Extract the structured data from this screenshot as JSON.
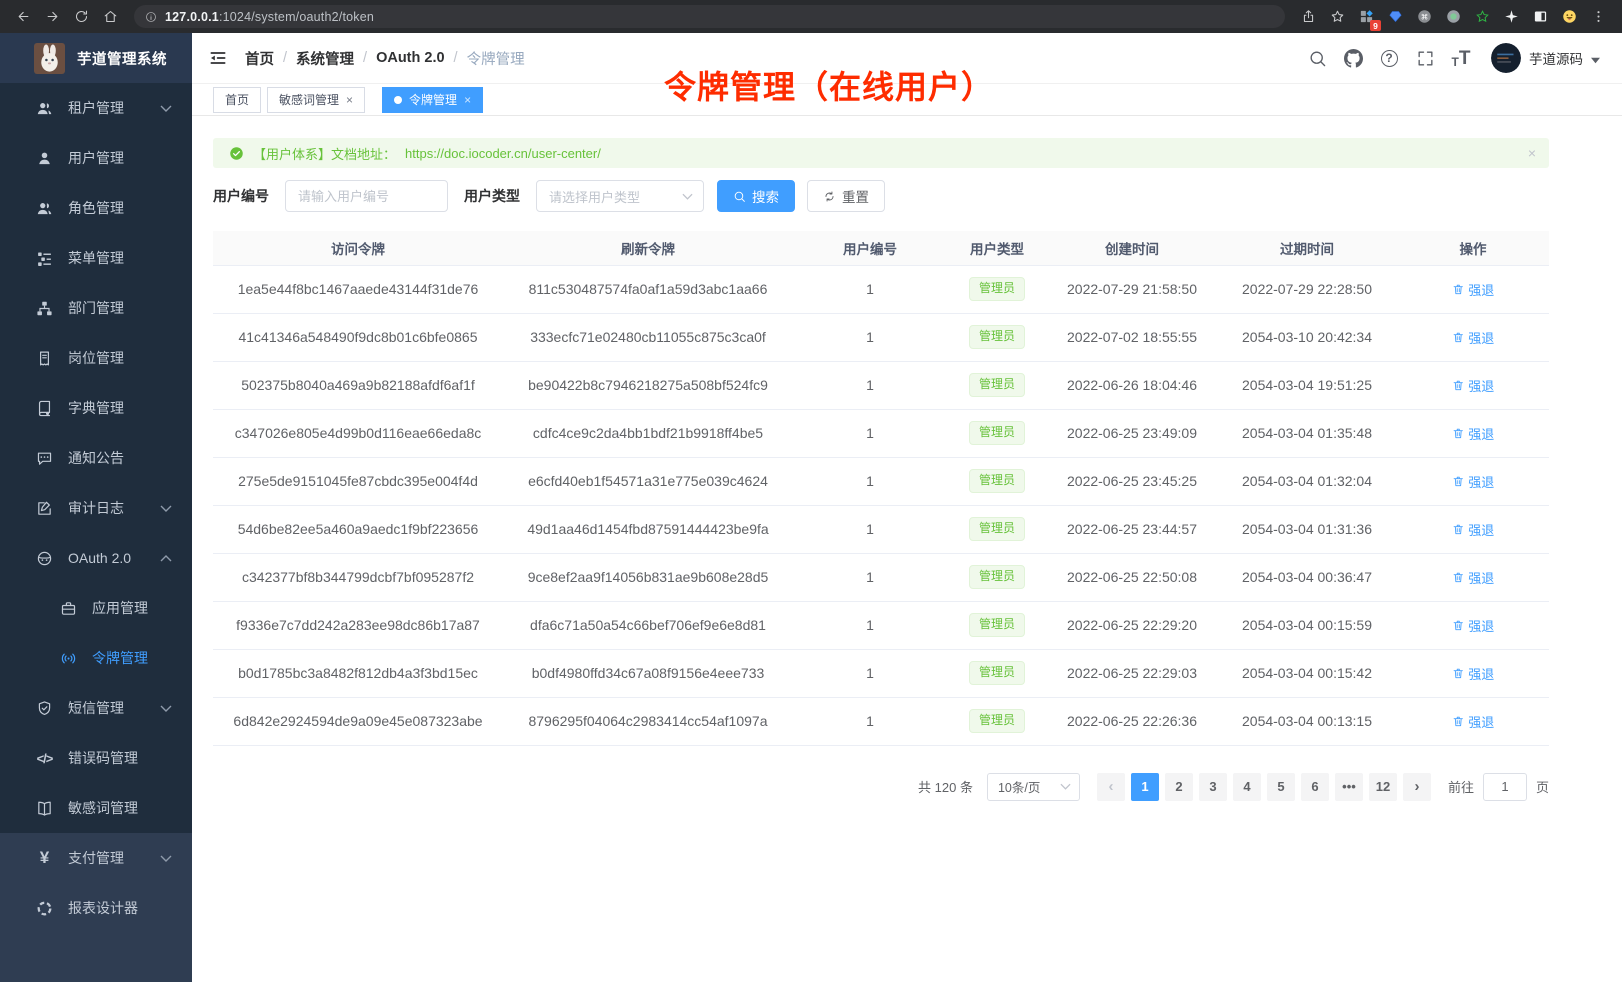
{
  "browser": {
    "nav_icons": [
      "back-icon",
      "forward-icon",
      "reload-icon",
      "home-icon"
    ],
    "url_icon": "info-icon",
    "url_host": "127.0.0.1",
    "url_rest": ":1024/system/oauth2/token",
    "right_icons": [
      "share-icon",
      "bookmark-star-icon",
      "extensions-grid-icon",
      "gem-extension-icon",
      "command-extension-icon",
      "record-extension-icon",
      "green-star-extension-icon",
      "white-star-extension-icon",
      "side-panel-icon",
      "emoji-profile-icon",
      "kebab-menu-icon"
    ],
    "extension_badge": "9"
  },
  "sidebar": {
    "logo_title": "芋道管理系统",
    "menu": [
      {
        "id": "tenant",
        "icon": "users-icon",
        "label": "租户管理",
        "chevron": "down"
      },
      {
        "id": "user",
        "icon": "user-icon",
        "label": "用户管理"
      },
      {
        "id": "role",
        "icon": "role-users-icon",
        "label": "角色管理"
      },
      {
        "id": "menu",
        "icon": "menu-tree-icon",
        "label": "菜单管理"
      },
      {
        "id": "dept",
        "icon": "org-tree-icon",
        "label": "部门管理"
      },
      {
        "id": "post",
        "icon": "badge-icon",
        "label": "岗位管理"
      },
      {
        "id": "dict",
        "icon": "dictionary-icon",
        "label": "字典管理"
      },
      {
        "id": "notice",
        "icon": "announcement-icon",
        "label": "通知公告"
      },
      {
        "id": "audit",
        "icon": "audit-log-icon",
        "label": "审计日志",
        "chevron": "down"
      },
      {
        "id": "oauth2",
        "icon": "oauth-mask-icon",
        "label": "OAuth 2.0",
        "chevron": "up"
      },
      {
        "id": "oauth2-app",
        "icon": "briefcase-icon",
        "label": "应用管理",
        "sub": true
      },
      {
        "id": "oauth2-token",
        "icon": "broadcast-icon",
        "label": "令牌管理",
        "sub": true,
        "active": true
      },
      {
        "id": "sms",
        "icon": "shield-check-icon",
        "label": "短信管理",
        "chevron": "down"
      },
      {
        "id": "errcode",
        "icon": "code-icon",
        "label": "错误码管理"
      },
      {
        "id": "sensitive",
        "icon": "open-book-icon",
        "label": "敏感词管理"
      },
      {
        "id": "pay",
        "icon": "yen-icon",
        "label": "支付管理",
        "chevron": "down",
        "section2": true
      },
      {
        "id": "report",
        "icon": "pie-circle-icon",
        "label": "报表设计器",
        "section2": true
      }
    ]
  },
  "navbar": {
    "breadcrumb": [
      "首页",
      "系统管理",
      "OAuth 2.0",
      "令牌管理"
    ],
    "separator": "/",
    "right_icons": [
      "search-icon",
      "github-icon",
      "help-icon",
      "fullscreen-icon",
      "font-size-icon"
    ],
    "username": "芋道源码"
  },
  "tabs": [
    {
      "label": "首页",
      "closable": false,
      "active": false
    },
    {
      "label": "敏感词管理",
      "closable": true,
      "active": false
    },
    {
      "label": "令牌管理",
      "closable": true,
      "active": true
    }
  ],
  "annotation": "令牌管理（在线用户）",
  "alert": {
    "prefix": "【用户体系】文档地址：",
    "link": "https://doc.iocoder.cn/user-center/"
  },
  "filters": {
    "user_id_label": "用户编号",
    "user_id_placeholder": "请输入用户编号",
    "user_type_label": "用户类型",
    "user_type_placeholder": "请选择用户类型",
    "search_button": "搜索",
    "reset_button": "重置"
  },
  "table": {
    "columns": [
      "访问令牌",
      "刷新令牌",
      "用户编号",
      "用户类型",
      "创建时间",
      "过期时间",
      "操作"
    ],
    "action_label": "强退",
    "rows": [
      {
        "access": "1ea5e44f8bc1467aaede43144f31de76",
        "refresh": "811c530487574fa0af1a59d3abc1aa66",
        "user_id": "1",
        "user_type": "管理员",
        "created": "2022-07-29 21:58:50",
        "expires": "2022-07-29 22:28:50"
      },
      {
        "access": "41c41346a548490f9dc8b01c6bfe0865",
        "refresh": "333ecfc71e02480cb11055c875c3ca0f",
        "user_id": "1",
        "user_type": "管理员",
        "created": "2022-07-02 18:55:55",
        "expires": "2054-03-10 20:42:34"
      },
      {
        "access": "502375b8040a469a9b82188afdf6af1f",
        "refresh": "be90422b8c7946218275a508bf524fc9",
        "user_id": "1",
        "user_type": "管理员",
        "created": "2022-06-26 18:04:46",
        "expires": "2054-03-04 19:51:25"
      },
      {
        "access": "c347026e805e4d99b0d116eae66eda8c",
        "refresh": "cdfc4ce9c2da4bb1bdf21b9918ff4be5",
        "user_id": "1",
        "user_type": "管理员",
        "created": "2022-06-25 23:49:09",
        "expires": "2054-03-04 01:35:48"
      },
      {
        "access": "275e5de9151045fe87cbdc395e004f4d",
        "refresh": "e6cfd40eb1f54571a31e775e039c4624",
        "user_id": "1",
        "user_type": "管理员",
        "created": "2022-06-25 23:45:25",
        "expires": "2054-03-04 01:32:04"
      },
      {
        "access": "54d6be82ee5a460a9aedc1f9bf223656",
        "refresh": "49d1aa46d1454fbd87591444423be9fa",
        "user_id": "1",
        "user_type": "管理员",
        "created": "2022-06-25 23:44:57",
        "expires": "2054-03-04 01:31:36"
      },
      {
        "access": "c342377bf8b344799dcbf7bf095287f2",
        "refresh": "9ce8ef2aa9f14056b831ae9b608e28d5",
        "user_id": "1",
        "user_type": "管理员",
        "created": "2022-06-25 22:50:08",
        "expires": "2054-03-04 00:36:47"
      },
      {
        "access": "f9336e7c7dd242a283ee98dc86b17a87",
        "refresh": "dfa6c71a50a54c66bef706ef9e6e8d81",
        "user_id": "1",
        "user_type": "管理员",
        "created": "2022-06-25 22:29:20",
        "expires": "2054-03-04 00:15:59"
      },
      {
        "access": "b0d1785bc3a8482f812db4a3f3bd15ec",
        "refresh": "b0df4980ffd34c67a08f9156e4eee733",
        "user_id": "1",
        "user_type": "管理员",
        "created": "2022-06-25 22:29:03",
        "expires": "2054-03-04 00:15:42"
      },
      {
        "access": "6d842e2924594de9a09e45e087323abe",
        "refresh": "8796295f04064c2983414cc54af1097a",
        "user_id": "1",
        "user_type": "管理员",
        "created": "2022-06-25 22:26:36",
        "expires": "2054-03-04 00:13:15"
      }
    ]
  },
  "pagination": {
    "total": "共 120 条",
    "page_size": "10条/页",
    "prev": "‹",
    "next": "›",
    "pages": [
      {
        "label": "1",
        "active": true
      },
      {
        "label": "2"
      },
      {
        "label": "3"
      },
      {
        "label": "4"
      },
      {
        "label": "5"
      },
      {
        "label": "6"
      },
      {
        "label": "•••",
        "more": true
      },
      {
        "label": "12"
      }
    ],
    "goto_label": "前往",
    "goto_value": "1",
    "unit": "页"
  },
  "colors": {
    "accent_blue": "#409eff",
    "success_green": "#67c23a",
    "annotation_red": "#fe2c00",
    "sidebar_bg": "#1f2d3d"
  }
}
